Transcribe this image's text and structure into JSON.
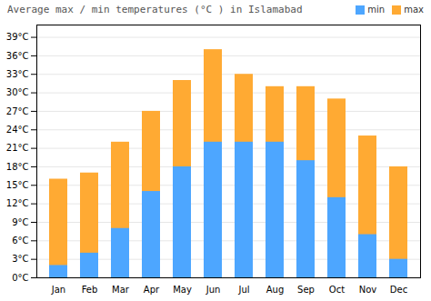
{
  "chart_data": {
    "type": "bar",
    "title": "Average max / min temperatures (°C ) in Islamabad",
    "categories": [
      "Jan",
      "Feb",
      "Mar",
      "Apr",
      "May",
      "Jun",
      "Jul",
      "Aug",
      "Sep",
      "Oct",
      "Nov",
      "Dec"
    ],
    "series": [
      {
        "name": "min",
        "color": "#4da6ff",
        "values": [
          2,
          4,
          8,
          14,
          18,
          22,
          22,
          22,
          19,
          13,
          7,
          3
        ]
      },
      {
        "name": "max",
        "color": "#ffaa33",
        "values": [
          16,
          17,
          22,
          27,
          32,
          37,
          33,
          31,
          31,
          29,
          23,
          18
        ]
      }
    ],
    "ylim": [
      0,
      41
    ],
    "yticks": [
      {
        "value": 0,
        "label": "0°C"
      },
      {
        "value": 3,
        "label": "3°C"
      },
      {
        "value": 6,
        "label": "6°C"
      },
      {
        "value": 9,
        "label": "9°C"
      },
      {
        "value": 12,
        "label": "12°C"
      },
      {
        "value": 15,
        "label": "15°C"
      },
      {
        "value": 18,
        "label": "18°C"
      },
      {
        "value": 21,
        "label": "21°C"
      },
      {
        "value": 24,
        "label": "24°C"
      },
      {
        "value": 27,
        "label": "27°C"
      },
      {
        "value": 30,
        "label": "30°C"
      },
      {
        "value": 33,
        "label": "33°C"
      },
      {
        "value": 36,
        "label": "36°C"
      },
      {
        "value": 39,
        "label": "39°C"
      }
    ],
    "grid": true,
    "legend": "upper right",
    "stacked": false
  }
}
